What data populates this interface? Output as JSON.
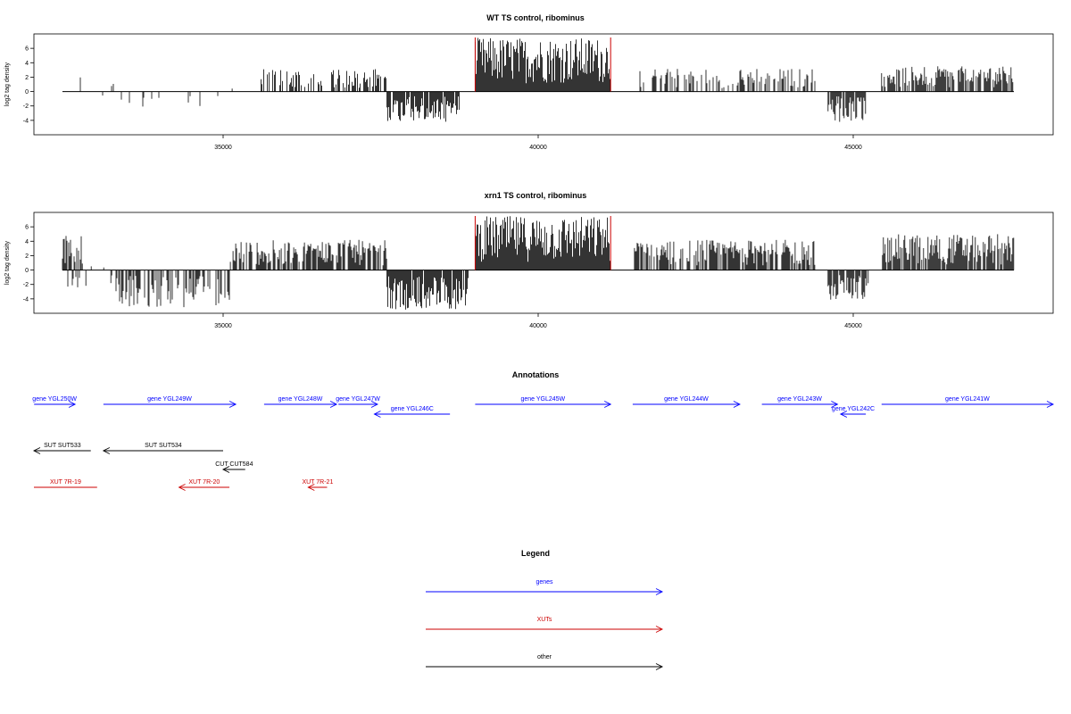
{
  "chart_data": [
    {
      "type": "bar",
      "title": "WT TS control, ribominus",
      "ylabel": "log2 tag density",
      "xlim": [
        32000,
        48200
      ],
      "ylim": [
        -6,
        8
      ],
      "yticks": [
        -4,
        -2,
        0,
        2,
        4,
        6
      ],
      "xticks": [
        35000,
        40000,
        45000
      ],
      "grid": false,
      "highlight_lines": [
        39000,
        41150
      ],
      "highlight_color": "#cc0000",
      "segments": [
        {
          "from": 32450,
          "to": 33400,
          "sign": "mixed",
          "max": 2.5,
          "min": -2,
          "density": 0.12
        },
        {
          "from": 33400,
          "to": 35100,
          "sign": "neg",
          "max": 0,
          "min": -2.2,
          "density": 0.1
        },
        {
          "from": 35100,
          "to": 35200,
          "sign": "pos",
          "max": 2,
          "min": 0,
          "density": 0.3
        },
        {
          "from": 35600,
          "to": 37600,
          "sign": "pos",
          "max": 3.2,
          "min": 0,
          "density": 0.5
        },
        {
          "from": 37600,
          "to": 38750,
          "sign": "neg",
          "max": 0,
          "min": -4.2,
          "density": 0.9
        },
        {
          "from": 39000,
          "to": 41150,
          "sign": "pos",
          "max": 7.5,
          "min": 0,
          "density": 1.0
        },
        {
          "from": 41600,
          "to": 44400,
          "sign": "pos",
          "max": 3.2,
          "min": 0,
          "density": 0.45
        },
        {
          "from": 44600,
          "to": 45200,
          "sign": "neg",
          "max": 0,
          "min": -4.3,
          "density": 0.9
        },
        {
          "from": 45450,
          "to": 47550,
          "sign": "pos",
          "max": 3.5,
          "min": 0,
          "density": 0.75
        }
      ]
    },
    {
      "type": "bar",
      "title": "xrn1 TS control, ribominus",
      "ylabel": "log2 tag density",
      "xlim": [
        32000,
        48200
      ],
      "ylim": [
        -6,
        8
      ],
      "yticks": [
        -4,
        -2,
        0,
        2,
        4,
        6
      ],
      "xticks": [
        35000,
        40000,
        45000
      ],
      "grid": false,
      "highlight_lines": [
        39000,
        41150
      ],
      "highlight_color": "#cc0000",
      "segments": [
        {
          "from": 32450,
          "to": 32750,
          "sign": "mixed",
          "max": 4.8,
          "min": -4.2,
          "density": 0.95
        },
        {
          "from": 32750,
          "to": 33300,
          "sign": "mixed",
          "max": 1.2,
          "min": -2.2,
          "density": 0.15
        },
        {
          "from": 33300,
          "to": 35100,
          "sign": "neg",
          "max": 0,
          "min": -5.2,
          "density": 0.55
        },
        {
          "from": 35100,
          "to": 37600,
          "sign": "pos",
          "max": 4.2,
          "min": 0,
          "density": 0.75
        },
        {
          "from": 37600,
          "to": 38900,
          "sign": "neg",
          "max": 0,
          "min": -5.5,
          "density": 0.95
        },
        {
          "from": 39000,
          "to": 41150,
          "sign": "pos",
          "max": 7.5,
          "min": 0,
          "density": 1.0
        },
        {
          "from": 41500,
          "to": 44400,
          "sign": "pos",
          "max": 4.2,
          "min": 0,
          "density": 0.7
        },
        {
          "from": 44600,
          "to": 45250,
          "sign": "neg",
          "max": 0,
          "min": -4.2,
          "density": 0.9
        },
        {
          "from": 45450,
          "to": 47550,
          "sign": "pos",
          "max": 5,
          "min": 0,
          "density": 0.85
        }
      ]
    }
  ],
  "annotations": {
    "title": "Annotations",
    "rows": [
      {
        "color": "#0000ff",
        "items": [
          {
            "label": "gene YGL250W",
            "from": 32000,
            "to": 32650,
            "dir": "right"
          },
          {
            "label": "gene YGL249W",
            "from": 33100,
            "to": 35200,
            "dir": "right"
          },
          {
            "label": "gene YGL248W",
            "from": 35650,
            "to": 36800,
            "dir": "right"
          },
          {
            "label": "gene YGL247W",
            "from": 36830,
            "to": 37450,
            "dir": "right"
          },
          {
            "label": "gene YGL245W",
            "from": 39000,
            "to": 41150,
            "dir": "right"
          },
          {
            "label": "gene YGL244W",
            "from": 41500,
            "to": 43200,
            "dir": "right"
          },
          {
            "label": "gene YGL243W",
            "from": 43550,
            "to": 44750,
            "dir": "right"
          },
          {
            "label": "gene YGL241W",
            "from": 45450,
            "to": 48300,
            "dir": "right"
          }
        ]
      },
      {
        "color": "#0000ff",
        "items": [
          {
            "label": "gene YGL246C",
            "from": 37400,
            "to": 38600,
            "dir": "left"
          },
          {
            "label": "gene YGL242C",
            "from": 44800,
            "to": 45200,
            "dir": "left"
          }
        ]
      },
      {
        "color": "#000000",
        "items": [
          {
            "label": "SUT SUT533",
            "from": 31950,
            "to": 32900,
            "dir": "left"
          },
          {
            "label": "SUT SUT534",
            "from": 33100,
            "to": 35000,
            "dir": "left"
          }
        ]
      },
      {
        "color": "#000000",
        "items": [
          {
            "label": "CUT CUT584",
            "from": 35000,
            "to": 35350,
            "dir": "left"
          }
        ]
      },
      {
        "color": "#cc0000",
        "items": [
          {
            "label": "XUT 7R-19",
            "from": 31950,
            "to": 33000,
            "dir": "none"
          },
          {
            "label": "XUT 7R-20",
            "from": 34300,
            "to": 35100,
            "dir": "left"
          },
          {
            "label": "XUT 7R-21",
            "from": 36350,
            "to": 36650,
            "dir": "left"
          }
        ]
      }
    ]
  },
  "legend": {
    "title": "Legend",
    "items": [
      {
        "label": "genes",
        "color": "#0000ff"
      },
      {
        "label": "XUTs",
        "color": "#cc0000"
      },
      {
        "label": "other",
        "color": "#000000"
      }
    ]
  }
}
